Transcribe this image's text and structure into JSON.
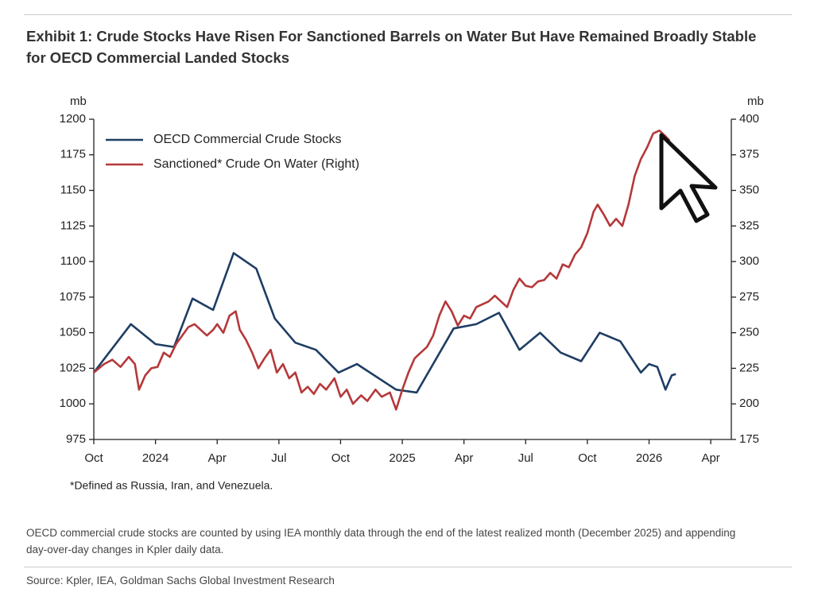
{
  "chart_data": {
    "type": "line",
    "title": "Exhibit 1: Crude Stocks Have Risen For Sanctioned Barrels on Water But Have Remained Broadly Stable for OECD Commercial Landed Stocks",
    "ylabel": "mb",
    "y2label": "mb",
    "xlim": [
      0,
      31
    ],
    "xticks": [
      {
        "value": 0,
        "label": "Oct"
      },
      {
        "value": 3,
        "label": "2024"
      },
      {
        "value": 6,
        "label": "Apr"
      },
      {
        "value": 9,
        "label": "Jul"
      },
      {
        "value": 12,
        "label": "Oct"
      },
      {
        "value": 15,
        "label": "2025"
      },
      {
        "value": 18,
        "label": "Apr"
      },
      {
        "value": 21,
        "label": "Jul"
      },
      {
        "value": 24,
        "label": "Oct"
      },
      {
        "value": 27,
        "label": "2026"
      },
      {
        "value": 30,
        "label": "Apr"
      }
    ],
    "ylim": [
      975,
      1200
    ],
    "yticks": [
      975,
      1000,
      1025,
      1050,
      1075,
      1100,
      1125,
      1150,
      1175,
      1200
    ],
    "y2lim": [
      175,
      400
    ],
    "y2ticks": [
      175,
      200,
      225,
      250,
      275,
      300,
      325,
      350,
      375,
      400
    ],
    "series": [
      {
        "name": "OECD Commercial Crude Stocks",
        "color": "#1f3d63",
        "x": [
          0,
          1.8,
          3,
          3.9,
          4.8,
          5.8,
          6.8,
          7.9,
          8.8,
          9.8,
          10.8,
          11.9,
          12.8,
          14.7,
          15.7,
          17.5,
          18.6,
          19.7,
          20.7,
          21.7,
          22.7,
          23.7,
          24.6,
          25.6,
          26.6,
          27,
          27.4,
          27.8,
          28.1,
          28.3
        ],
        "values": [
          1022,
          1056,
          1042,
          1040,
          1074,
          1066,
          1106,
          1095,
          1060,
          1043,
          1038,
          1022,
          1028,
          1010,
          1008,
          1053,
          1056,
          1064,
          1038,
          1050,
          1036,
          1030,
          1050,
          1044,
          1022,
          1028,
          1026,
          1010,
          1020,
          1021
        ]
      },
      {
        "name": "Sanctioned* Crude On Water (Right)",
        "color": "#b5383a",
        "axis": "y2",
        "x": [
          0,
          0.5,
          0.9,
          1.3,
          1.7,
          2.0,
          2.2,
          2.5,
          2.8,
          3.1,
          3.4,
          3.7,
          4.0,
          4.3,
          4.6,
          4.9,
          5.2,
          5.5,
          5.8,
          6.0,
          6.3,
          6.6,
          6.9,
          7.1,
          7.4,
          7.7,
          8.0,
          8.3,
          8.6,
          8.9,
          9.2,
          9.5,
          9.8,
          10.1,
          10.4,
          10.7,
          11.0,
          11.3,
          11.7,
          12.0,
          12.3,
          12.6,
          13.0,
          13.3,
          13.7,
          14.0,
          14.4,
          14.7,
          15.0,
          15.3,
          15.6,
          15.9,
          16.2,
          16.5,
          16.8,
          17.1,
          17.4,
          17.7,
          18.0,
          18.3,
          18.6,
          18.9,
          19.2,
          19.5,
          19.8,
          20.1,
          20.4,
          20.7,
          21.0,
          21.3,
          21.6,
          21.9,
          22.2,
          22.5,
          22.8,
          23.1,
          23.4,
          23.7,
          24.0,
          24.3,
          24.5,
          24.8,
          25.1,
          25.4,
          25.7,
          26.0,
          26.3,
          26.6,
          26.9,
          27.2,
          27.5,
          27.8,
          28.0
        ],
        "values": [
          222,
          228,
          231,
          226,
          233,
          228,
          210,
          220,
          225,
          226,
          236,
          233,
          242,
          248,
          254,
          256,
          252,
          248,
          252,
          256,
          250,
          262,
          265,
          252,
          245,
          236,
          225,
          232,
          238,
          222,
          228,
          218,
          222,
          208,
          212,
          207,
          214,
          210,
          218,
          205,
          210,
          200,
          206,
          202,
          210,
          205,
          208,
          196,
          210,
          222,
          232,
          236,
          240,
          248,
          262,
          272,
          265,
          255,
          262,
          260,
          268,
          270,
          272,
          276,
          272,
          268,
          280,
          288,
          283,
          282,
          286,
          287,
          292,
          288,
          298,
          296,
          305,
          310,
          320,
          335,
          340,
          333,
          325,
          330,
          325,
          340,
          360,
          372,
          380,
          390,
          392,
          388,
          385
        ]
      }
    ],
    "footnote": "*Defined as Russia, Iran, and Venezuela.",
    "note": "OECD commercial crude stocks are counted by using IEA monthly data through the end of the latest realized month (December 2025) and appending day-over-day changes in Kpler daily data.",
    "source": "Source: Kpler, IEA, Goldman Sachs Global Investment Research"
  }
}
